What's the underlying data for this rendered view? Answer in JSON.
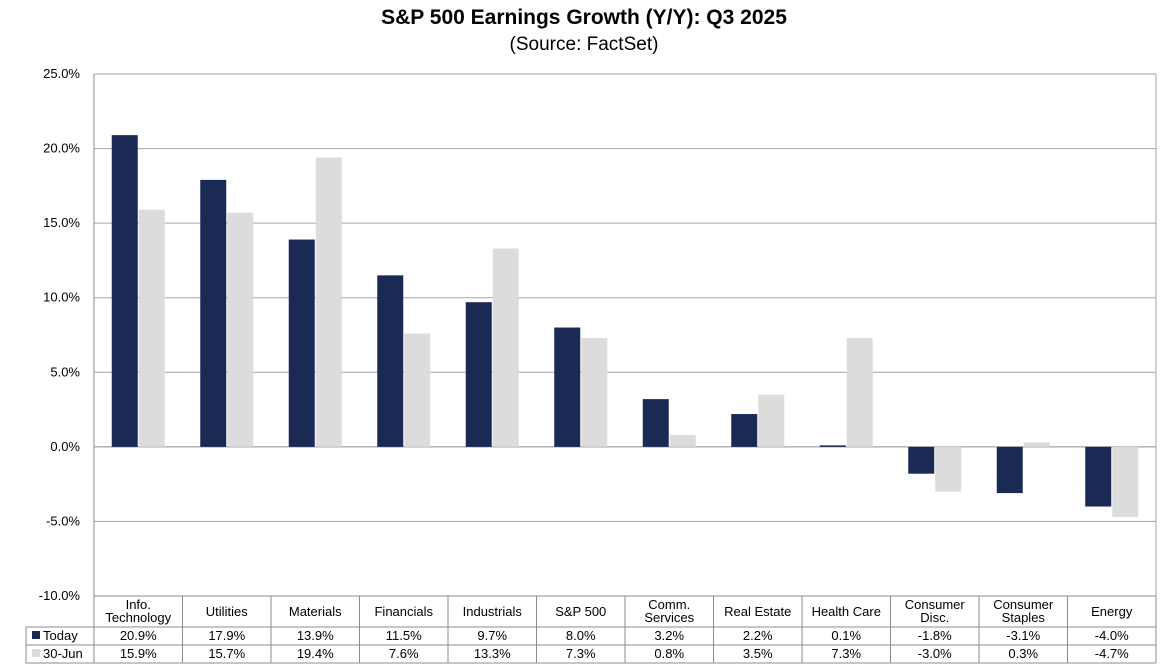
{
  "chart_data": {
    "type": "bar",
    "title": "S&P 500 Earnings Growth (Y/Y): Q3 2025",
    "subtitle": "(Source: FactSet)",
    "categories": [
      [
        "Info.",
        "Technology"
      ],
      [
        "Utilities"
      ],
      [
        "Materials"
      ],
      [
        "Financials"
      ],
      [
        "Industrials"
      ],
      [
        "S&P 500"
      ],
      [
        "Comm.",
        "Services"
      ],
      [
        "Real Estate"
      ],
      [
        "Health Care"
      ],
      [
        "Consumer",
        "Disc."
      ],
      [
        "Consumer",
        "Staples"
      ],
      [
        "Energy"
      ]
    ],
    "series": [
      {
        "name": "Today",
        "color": "#1b2a55",
        "values": [
          20.9,
          17.9,
          13.9,
          11.5,
          9.7,
          8.0,
          3.2,
          2.2,
          0.1,
          -1.8,
          -3.1,
          -4.0
        ],
        "labels": [
          "20.9%",
          "17.9%",
          "13.9%",
          "11.5%",
          "9.7%",
          "8.0%",
          "3.2%",
          "2.2%",
          "0.1%",
          "-1.8%",
          "-3.1%",
          "-4.0%"
        ]
      },
      {
        "name": "30-Jun",
        "color": "#dcdcdc",
        "values": [
          15.9,
          15.7,
          19.4,
          7.6,
          13.3,
          7.3,
          0.8,
          3.5,
          7.3,
          -3.0,
          0.3,
          -4.7
        ],
        "labels": [
          "15.9%",
          "15.7%",
          "19.4%",
          "7.6%",
          "13.3%",
          "7.3%",
          "0.8%",
          "3.5%",
          "7.3%",
          "-3.0%",
          "0.3%",
          "-4.7%"
        ]
      }
    ],
    "yticks": [
      25,
      20,
      15,
      10,
      5,
      0,
      -5,
      -10
    ],
    "ytick_labels": [
      "25.0%",
      "20.0%",
      "15.0%",
      "10.0%",
      "5.0%",
      "0.0%",
      "-5.0%",
      "-10.0%"
    ],
    "ylim": [
      -10,
      25
    ],
    "grid": true,
    "legend": "data-table"
  }
}
